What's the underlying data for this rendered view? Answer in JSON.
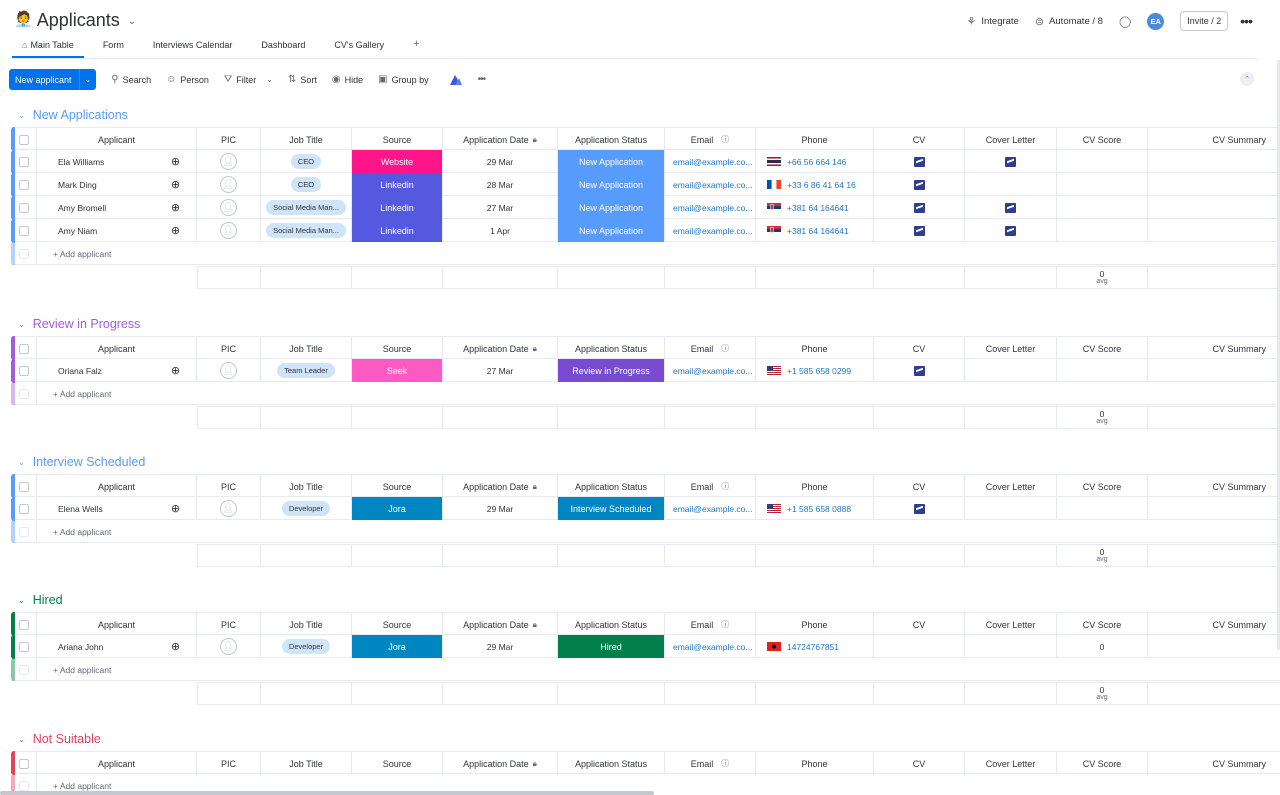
{
  "header": {
    "emoji": "🧑‍💼",
    "title": "Applicants",
    "integrate": "Integrate",
    "automate": "Automate / 8",
    "avatar": "EA",
    "invite": "Invite / 2"
  },
  "tabs": [
    "Main Table",
    "Form",
    "Interviews Calendar",
    "Dashboard",
    "CV's Gallery"
  ],
  "toolbar": {
    "new_item": "New applicant",
    "search": "Search",
    "person": "Person",
    "filter": "Filter",
    "sort": "Sort",
    "hide": "Hide",
    "group_by": "Group by"
  },
  "columns": {
    "applicant": "Applicant",
    "pic": "PIC",
    "job": "Job Title",
    "source": "Source",
    "date": "Application Date",
    "status": "Application Status",
    "email": "Email",
    "phone": "Phone",
    "cv": "CV",
    "cover": "Cover Letter",
    "score": "CV Score",
    "summary": "CV Summary"
  },
  "add_item": "+ Add applicant",
  "summary": {
    "value": "0",
    "label": "avg"
  },
  "colors": {
    "accent": "#0073ea",
    "new_applications": "#579bfc",
    "review": "#a25ddc",
    "interview": "#579bfc",
    "hired": "#037f4c",
    "not_suitable": "#e2445c",
    "website": "#ff158a",
    "linkedin": "#5559df",
    "seek": "#ff5ac4",
    "jora": "#0086c0",
    "status_new": "#579bfc",
    "status_review": "#784bd1",
    "status_interview": "#0086c0",
    "status_hired": "#037f4c"
  },
  "groups": [
    {
      "name": "New Applications",
      "color": "#579bfc",
      "has_summary": true,
      "rows": [
        {
          "name": "Ela Williams",
          "job": "CEO",
          "source": "Website",
          "source_color": "#ff158a",
          "date": "29 Mar",
          "status": "New Application",
          "status_color": "#579bfc",
          "email": "email@example.co...",
          "flag": "th",
          "phone": "+66 56 664 146",
          "cv": true,
          "cover": true,
          "score": ""
        },
        {
          "name": "Mark Ding",
          "job": "CEO",
          "source": "Linkedin",
          "source_color": "#5559df",
          "date": "28 Mar",
          "status": "New Application",
          "status_color": "#579bfc",
          "email": "email@example.co...",
          "flag": "fr",
          "phone": "+33 6 86 41 64 16",
          "cv": true,
          "cover": false,
          "score": ""
        },
        {
          "name": "Amy Bromell",
          "job": "Social Media Man...",
          "source": "Linkedin",
          "source_color": "#5559df",
          "date": "27 Mar",
          "status": "New Application",
          "status_color": "#579bfc",
          "email": "email@example.co...",
          "flag": "rs",
          "phone": "+381 64 164641",
          "cv": true,
          "cover": true,
          "score": ""
        },
        {
          "name": "Amy Niam",
          "job": "Social Media Man...",
          "source": "Linkedin",
          "source_color": "#5559df",
          "date": "1 Apr",
          "status": "New Application",
          "status_color": "#579bfc",
          "email": "email@example.co...",
          "flag": "rs",
          "phone": "+381 64 164641",
          "cv": true,
          "cover": true,
          "score": ""
        }
      ]
    },
    {
      "name": "Review in Progress",
      "color": "#a25ddc",
      "has_summary": true,
      "rows": [
        {
          "name": "Oriana Falz",
          "job": "Team Leader",
          "source": "Seek",
          "source_color": "#ff5ac4",
          "date": "27 Mar",
          "status": "Review in Progress",
          "status_color": "#784bd1",
          "email": "email@example.co...",
          "flag": "us",
          "phone": "+1 585 658 0299",
          "cv": true,
          "cover": false,
          "score": ""
        }
      ]
    },
    {
      "name": "Interview Scheduled",
      "color": "#579bfc",
      "has_summary": true,
      "rows": [
        {
          "name": "Elena Wells",
          "job": "Developer",
          "source": "Jora",
          "source_color": "#0086c0",
          "date": "29 Mar",
          "status": "Interview Scheduled",
          "status_color": "#0086c0",
          "email": "email@example.co...",
          "flag": "us",
          "phone": "+1 585 658 0888",
          "cv": true,
          "cover": false,
          "score": ""
        }
      ]
    },
    {
      "name": "Hired",
      "color": "#037f4c",
      "has_summary": true,
      "rows": [
        {
          "name": "Ariana John",
          "job": "Developer",
          "source": "Jora",
          "source_color": "#0086c0",
          "date": "29 Mar",
          "status": "Hired",
          "status_color": "#037f4c",
          "email": "email@example.co...",
          "flag": "al",
          "phone": "14724767851",
          "cv": false,
          "cover": false,
          "score": "0"
        }
      ]
    },
    {
      "name": "Not Suitable",
      "color": "#e2445c",
      "has_summary": false,
      "rows": []
    }
  ]
}
